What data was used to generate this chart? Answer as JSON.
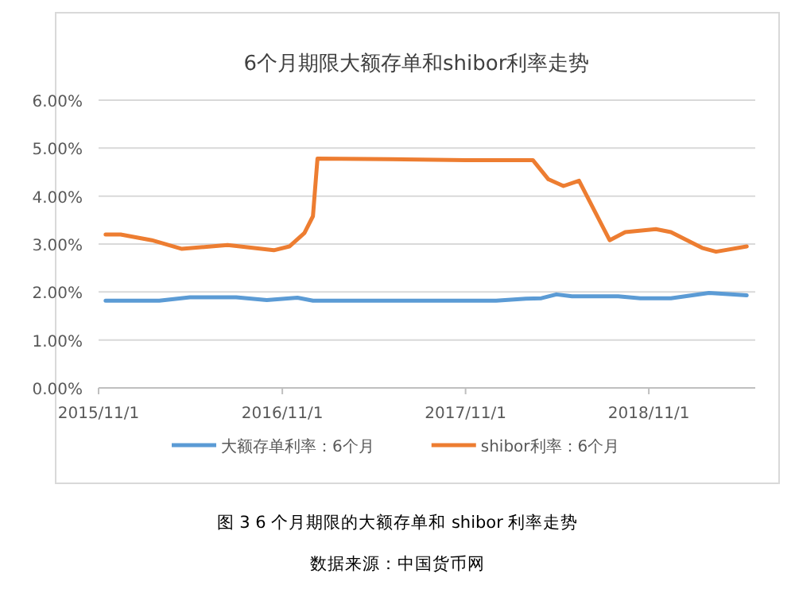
{
  "chart_data": {
    "type": "line",
    "title": "6个月期限大额存单和shibor利率走势",
    "annotations": [
      "图 3 6 个月期限的大额存单和 shibor 利率走势",
      "数据来源：中国货币网"
    ],
    "xlim": [
      "2015-11-01",
      "2019-06-01"
    ],
    "xticks": [
      {
        "value": "2015-11-01",
        "label": "2015/11/1"
      },
      {
        "value": "2016-11-01",
        "label": "2016/11/1"
      },
      {
        "value": "2017-11-01",
        "label": "2017/11/1"
      },
      {
        "value": "2018-11-01",
        "label": "2018/11/1"
      }
    ],
    "ylim": [
      0,
      6
    ],
    "yticks": [
      {
        "value": 0,
        "label": "0.00%"
      },
      {
        "value": 1,
        "label": "1.00%"
      },
      {
        "value": 2,
        "label": "2.00%"
      },
      {
        "value": 3,
        "label": "3.00%"
      },
      {
        "value": 4,
        "label": "4.00%"
      },
      {
        "value": 5,
        "label": "5.00%"
      },
      {
        "value": 6,
        "label": "6.00%"
      }
    ],
    "grid": "y",
    "legend": "bottom",
    "series": [
      {
        "name": "大额存单利率：6个月",
        "color": "#5b9bd5",
        "x": [
          "2015-11-15",
          "2016-03-01",
          "2016-05-01",
          "2016-08-01",
          "2016-10-01",
          "2016-12-01",
          "2017-01-01",
          "2017-06-01",
          "2018-01-01",
          "2018-03-01",
          "2018-04-01",
          "2018-05-01",
          "2018-06-01",
          "2018-09-01",
          "2018-10-15",
          "2018-12-15",
          "2019-03-01",
          "2019-05-15"
        ],
        "values": [
          1.82,
          1.82,
          1.89,
          1.89,
          1.83,
          1.88,
          1.82,
          1.82,
          1.82,
          1.86,
          1.87,
          1.95,
          1.91,
          1.91,
          1.87,
          1.87,
          1.98,
          1.93
        ]
      },
      {
        "name": "shibor利率：6个月",
        "color": "#ed7d31",
        "x": [
          "2015-11-15",
          "2015-12-15",
          "2016-02-15",
          "2016-04-15",
          "2016-07-15",
          "2016-10-15",
          "2016-11-15",
          "2016-12-15",
          "2017-01-01",
          "2017-01-10",
          "2017-06-01",
          "2017-11-01",
          "2018-03-15",
          "2018-04-15",
          "2018-05-15",
          "2018-06-15",
          "2018-08-15",
          "2018-09-15",
          "2018-11-15",
          "2018-12-15",
          "2019-02-15",
          "2019-03-15",
          "2019-05-15"
        ],
        "values": [
          3.2,
          3.2,
          3.08,
          2.9,
          2.98,
          2.87,
          2.95,
          3.23,
          3.58,
          4.78,
          4.77,
          4.75,
          4.75,
          4.35,
          4.21,
          4.32,
          3.08,
          3.25,
          3.31,
          3.25,
          2.92,
          2.84,
          2.95
        ]
      }
    ]
  }
}
